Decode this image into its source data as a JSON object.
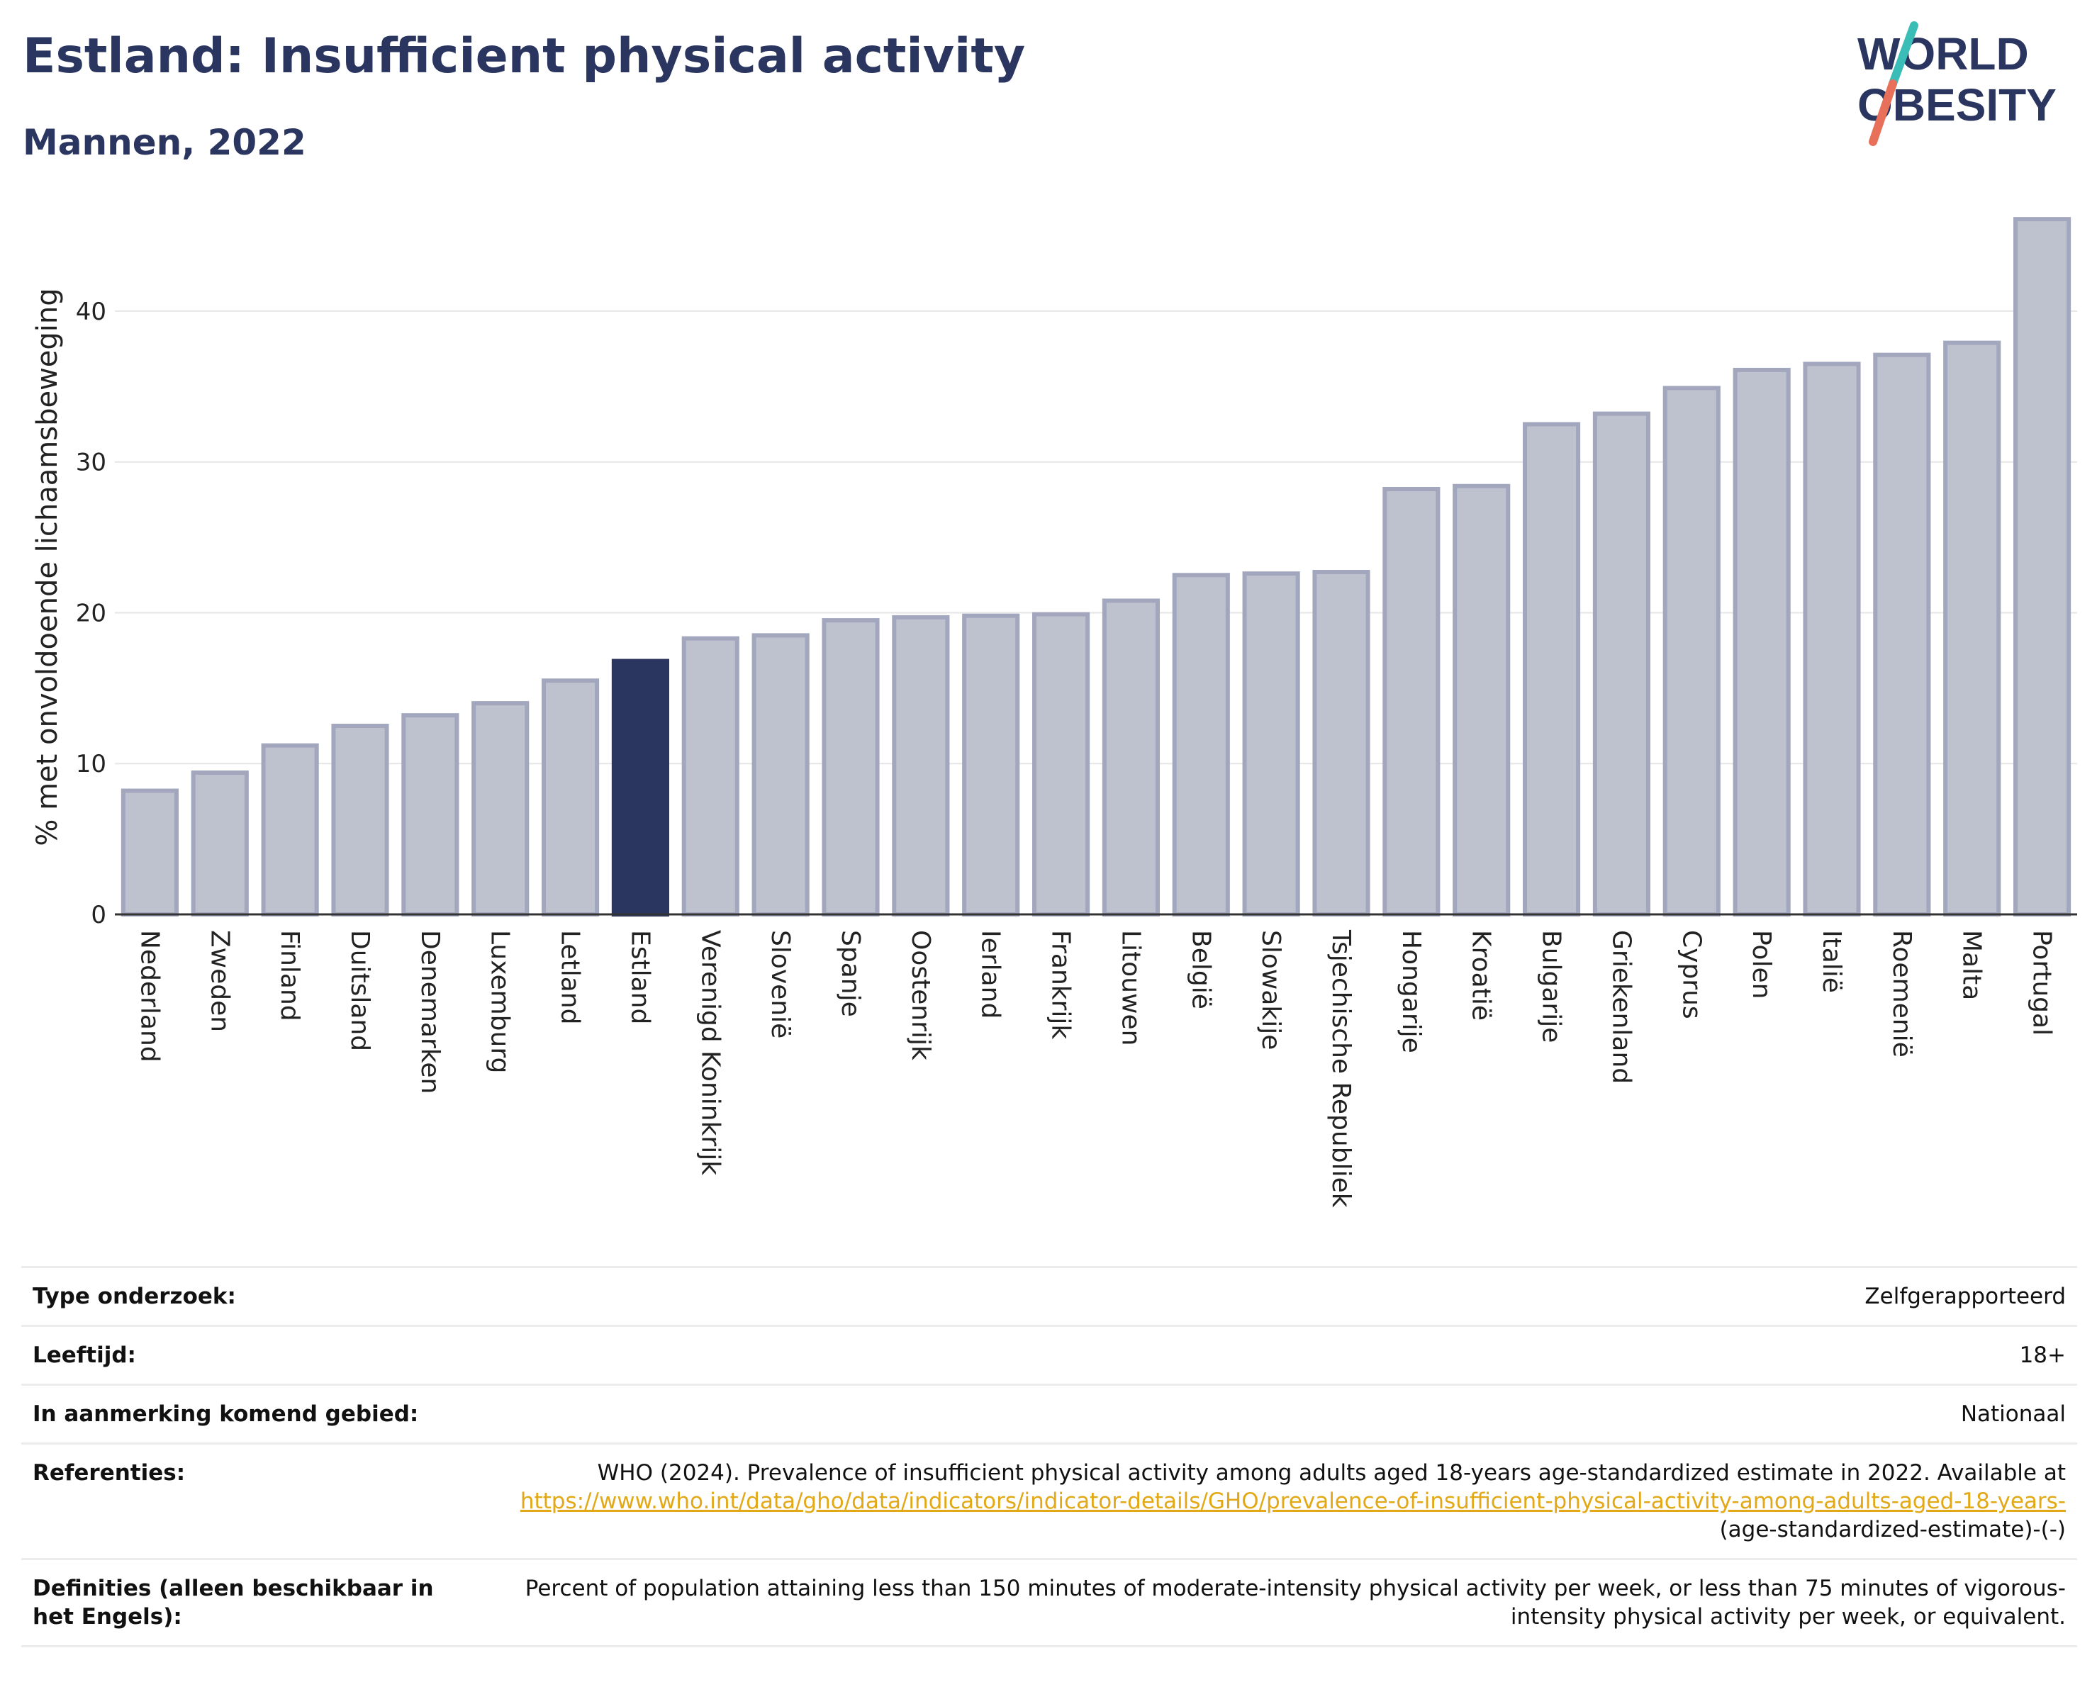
{
  "header": {
    "title": "Estland: Insufficient physical activity",
    "subtitle": "Mannen, 2022",
    "logo_line1": "WORLD",
    "logo_line2": "OBESITY"
  },
  "chart_data": {
    "type": "bar",
    "ylabel": "% met onvoldoende lichaamsbeweging",
    "xlabel": "",
    "ylim": [
      0,
      47
    ],
    "yticks": [
      0,
      10,
      20,
      30,
      40
    ],
    "grid": true,
    "highlight": "Estland",
    "categories": [
      "Nederland",
      "Zweden",
      "Finland",
      "Duitsland",
      "Denemarken",
      "Luxemburg",
      "Letland",
      "Estland",
      "Verenigd Koninkrijk",
      "Slovenië",
      "Spanje",
      "Oostenrijk",
      "Ierland",
      "Frankrijk",
      "Litouwen",
      "België",
      "Slowakije",
      "Tsjechische Republiek",
      "Hongarije",
      "Kroatië",
      "Bulgarije",
      "Griekenland",
      "Cyprus",
      "Polen",
      "Italië",
      "Roemenië",
      "Malta",
      "Portugal"
    ],
    "values": [
      8.2,
      9.4,
      11.2,
      12.5,
      13.2,
      14.0,
      15.5,
      16.8,
      18.3,
      18.5,
      19.5,
      19.7,
      19.8,
      19.9,
      20.8,
      22.5,
      22.6,
      22.7,
      28.2,
      28.4,
      32.5,
      33.2,
      34.9,
      36.1,
      36.5,
      37.1,
      37.9,
      46.1
    ],
    "colors": {
      "bar_fill": "#bec1ce",
      "bar_stroke": "#a3a7bd",
      "highlight_fill": "#2a3560",
      "grid": "#e6e6e6",
      "axis": "#333333"
    }
  },
  "info_table": [
    {
      "label": "Type onderzoek:",
      "value": "Zelfgerapporteerd"
    },
    {
      "label": "Leeftijd:",
      "value": "18+"
    },
    {
      "label": "In aanmerking komend gebied:",
      "value": "Nationaal"
    },
    {
      "label": "Referenties:",
      "value": "WHO (2024). Prevalence of insufficient physical activity among adults aged 18-years age-standardized estimate in 2022. Available at",
      "link": "https://www.who.int/data/gho/data/indicators/indicator-details/GHO/prevalence-of-insufficient-physical-activity-among-adults-aged-18-years-",
      "value_suffix": "(age-standardized-estimate)-(-)"
    },
    {
      "label": "Definities (alleen beschikbaar in het Engels):",
      "value": "Percent of population attaining less than 150 minutes of moderate-intensity physical activity per week, or less than 75 minutes of vigorous-intensity physical activity per week, or equivalent."
    }
  ]
}
